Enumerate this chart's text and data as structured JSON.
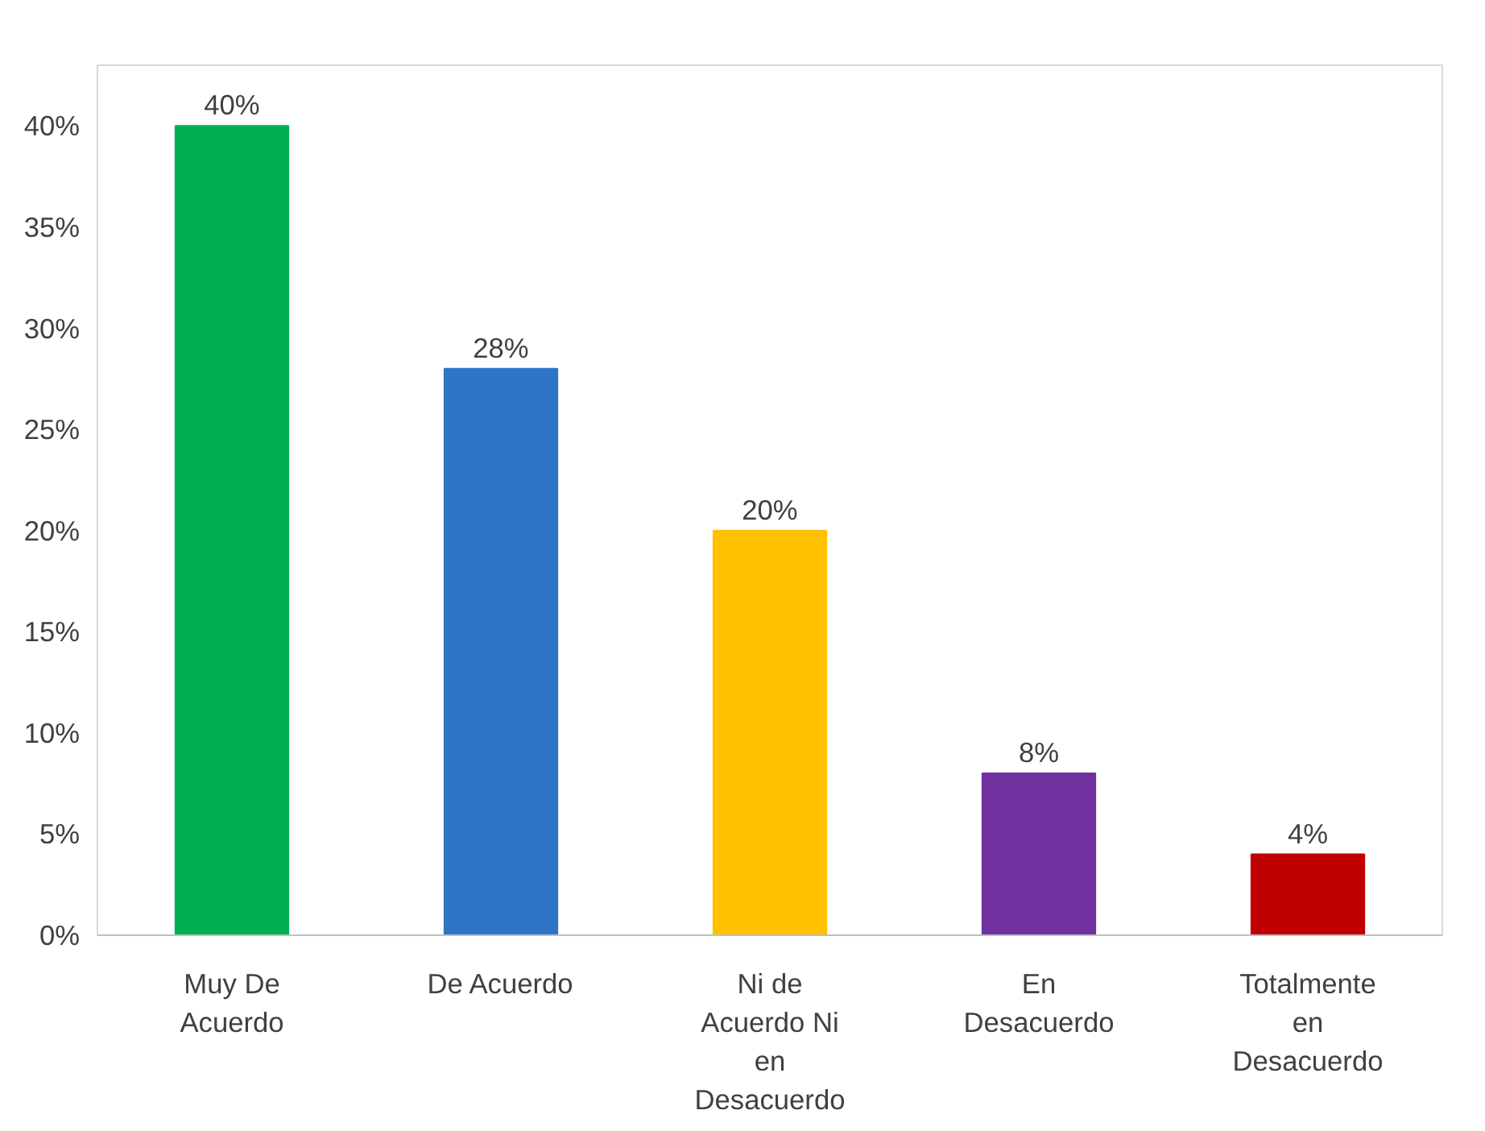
{
  "chart_data": {
    "type": "bar",
    "categories": [
      "Muy De Acuerdo",
      "De Acuerdo",
      "Ni de Acuerdo Ni en Desacuerdo",
      "En Desacuerdo",
      "Totalmente en Desacuerdo"
    ],
    "values": [
      40,
      28,
      20,
      8,
      4
    ],
    "colors": [
      "#00b050",
      "#2e75c6",
      "#ffc000",
      "#7030a0",
      "#c00000"
    ],
    "value_labels": [
      "40%",
      "28%",
      "20%",
      "8%",
      "4%"
    ],
    "ylim": [
      0,
      43
    ],
    "yticks": [
      {
        "value": 0,
        "label": "0%"
      },
      {
        "value": 5,
        "label": "5%"
      },
      {
        "value": 10,
        "label": "10%"
      },
      {
        "value": 15,
        "label": "15%"
      },
      {
        "value": 20,
        "label": "20%"
      },
      {
        "value": 25,
        "label": "25%"
      },
      {
        "value": 30,
        "label": "30%"
      },
      {
        "value": 35,
        "label": "35%"
      },
      {
        "value": 40,
        "label": "40%"
      }
    ],
    "grid": false
  }
}
